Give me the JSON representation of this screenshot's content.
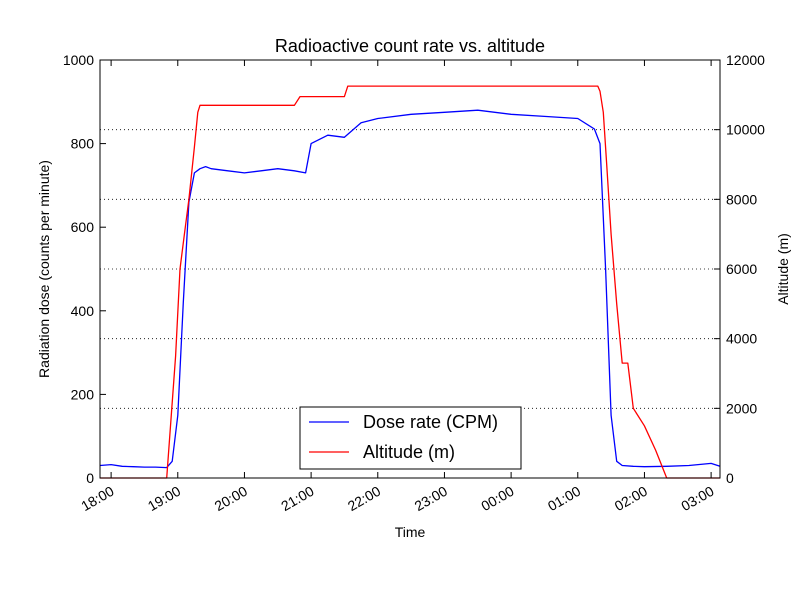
{
  "chart_data": {
    "type": "line",
    "title": "Radioactive count rate vs. altitude",
    "xlabel": "Time",
    "ylabel_left": "Radiation dose (counts per minute)",
    "ylabel_right": "Altitude (m)",
    "x_ticks": [
      "18:00",
      "19:00",
      "20:00",
      "21:00",
      "22:00",
      "23:00",
      "00:00",
      "01:00",
      "02:00",
      "03:00"
    ],
    "y_left_ticks": [
      "0",
      "200",
      "400",
      "600",
      "800",
      "1000"
    ],
    "y_right_ticks": [
      "0",
      "2000",
      "4000",
      "6000",
      "8000",
      "10000",
      "12000"
    ],
    "xlim": [
      "17:50",
      "03:08"
    ],
    "ylim_left": [
      0,
      1000
    ],
    "ylim_right": [
      0,
      12000
    ],
    "grid": "horizontal dotted, right axis",
    "legend": "lower-center",
    "series": [
      {
        "name": "Dose rate (CPM)",
        "axis": "left",
        "color": "#0000ff",
        "x": [
          "17:50",
          "18:00",
          "18:10",
          "18:20",
          "18:30",
          "18:40",
          "18:50",
          "18:55",
          "19:00",
          "19:05",
          "19:10",
          "19:15",
          "19:20",
          "19:25",
          "19:30",
          "19:45",
          "20:00",
          "20:15",
          "20:30",
          "20:45",
          "20:55",
          "21:00",
          "21:15",
          "21:30",
          "21:45",
          "22:00",
          "22:30",
          "23:00",
          "23:30",
          "00:00",
          "00:30",
          "01:00",
          "01:15",
          "01:20",
          "01:25",
          "01:30",
          "01:35",
          "01:40",
          "01:50",
          "02:00",
          "02:20",
          "02:40",
          "03:00",
          "03:08"
        ],
        "y": [
          30,
          32,
          28,
          27,
          26,
          26,
          25,
          40,
          150,
          420,
          660,
          730,
          740,
          745,
          740,
          735,
          730,
          735,
          740,
          735,
          730,
          800,
          820,
          815,
          850,
          860,
          870,
          875,
          880,
          870,
          865,
          860,
          835,
          800,
          500,
          150,
          40,
          30,
          28,
          27,
          28,
          30,
          35,
          28
        ]
      },
      {
        "name": "Altitude (m)",
        "axis": "right",
        "color": "#ff0000",
        "x": [
          "17:50",
          "18:50",
          "18:58",
          "19:02",
          "19:06",
          "19:10",
          "19:15",
          "19:18",
          "19:20",
          "20:00",
          "20:45",
          "20:50",
          "21:30",
          "21:33",
          "22:00",
          "23:00",
          "00:00",
          "01:00",
          "01:10",
          "01:18",
          "01:20",
          "01:23",
          "01:26",
          "01:30",
          "01:35",
          "01:40",
          "01:45",
          "01:50",
          "02:00",
          "02:10",
          "02:20",
          "02:30",
          "03:08"
        ],
        "y": [
          0,
          0,
          3500,
          6000,
          7000,
          8000,
          9500,
          10500,
          10700,
          10700,
          10700,
          10950,
          10950,
          11250,
          11250,
          11250,
          11250,
          11250,
          11250,
          11250,
          11100,
          10500,
          9000,
          7000,
          5000,
          3300,
          3300,
          2000,
          1500,
          800,
          0,
          0,
          0
        ]
      }
    ]
  }
}
